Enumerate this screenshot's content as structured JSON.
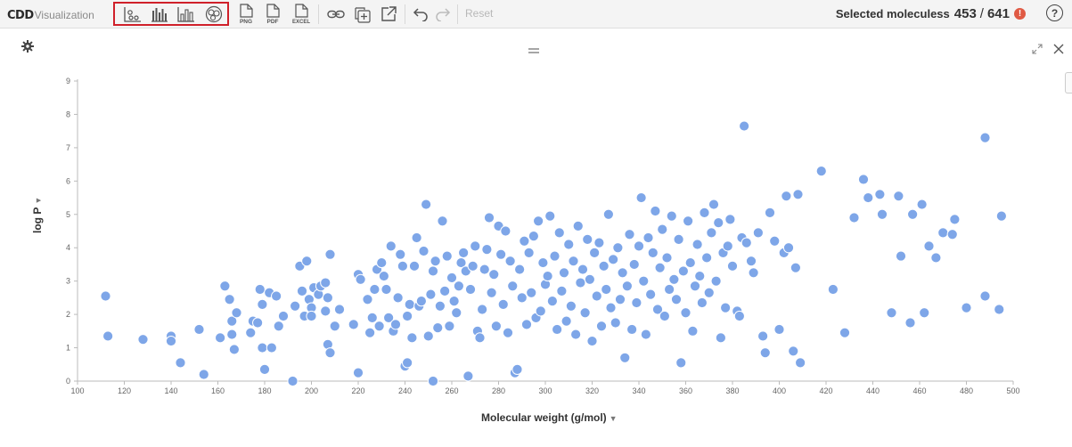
{
  "app": {
    "logo_brand": "CDD",
    "logo_product": "Visualization"
  },
  "toolbar": {
    "chart_types": [
      "scatter-plot",
      "histogram",
      "bar-chart",
      "venn-diagram"
    ],
    "exports": [
      "PNG",
      "PDF",
      "EXCEL"
    ],
    "reset_label": "Reset",
    "selected_label": "Selected moleculess",
    "selected_count": "453",
    "selected_separator": "/",
    "selected_total": "641",
    "warning_glyph": "!",
    "help_glyph": "?"
  },
  "plot": {
    "y_axis_label": "log P",
    "x_axis_label": "Molecular weight (g/mol)"
  },
  "chart_data": {
    "type": "scatter",
    "xlabel": "Molecular weight (g/mol)",
    "ylabel": "log P",
    "xlim": [
      100,
      500
    ],
    "ylim": [
      0,
      9
    ],
    "x_ticks": [
      100,
      120,
      140,
      160,
      180,
      200,
      220,
      240,
      260,
      280,
      300,
      320,
      340,
      360,
      380,
      400,
      420,
      440,
      460,
      480,
      500
    ],
    "y_ticks": [
      0,
      1,
      2,
      3,
      4,
      5,
      6,
      7,
      8,
      9
    ],
    "point_color": "#7ea6e8",
    "points": [
      [
        112,
        2.55
      ],
      [
        113,
        1.35
      ],
      [
        128,
        1.25
      ],
      [
        140,
        1.35
      ],
      [
        140,
        1.2
      ],
      [
        144,
        0.55
      ],
      [
        152,
        1.55
      ],
      [
        154,
        0.2
      ],
      [
        161,
        1.3
      ],
      [
        163,
        2.85
      ],
      [
        165,
        2.45
      ],
      [
        166,
        1.8
      ],
      [
        166,
        1.4
      ],
      [
        167,
        0.95
      ],
      [
        168,
        2.05
      ],
      [
        174,
        1.45
      ],
      [
        175,
        1.8
      ],
      [
        177,
        1.75
      ],
      [
        178,
        2.75
      ],
      [
        179,
        2.3
      ],
      [
        179,
        1.0
      ],
      [
        180,
        0.35
      ],
      [
        182,
        2.65
      ],
      [
        183,
        1.0
      ],
      [
        185,
        2.55
      ],
      [
        186,
        1.65
      ],
      [
        188,
        1.95
      ],
      [
        192,
        0.0
      ],
      [
        193,
        2.25
      ],
      [
        195,
        3.45
      ],
      [
        196,
        2.7
      ],
      [
        197,
        1.95
      ],
      [
        198,
        3.6
      ],
      [
        199,
        2.45
      ],
      [
        200,
        2.2
      ],
      [
        200,
        1.95
      ],
      [
        201,
        2.8
      ],
      [
        203,
        2.6
      ],
      [
        204,
        2.85
      ],
      [
        206,
        2.95
      ],
      [
        206,
        2.1
      ],
      [
        207,
        1.1
      ],
      [
        207,
        2.5
      ],
      [
        208,
        3.8
      ],
      [
        208,
        0.85
      ],
      [
        210,
        1.65
      ],
      [
        212,
        2.15
      ],
      [
        218,
        1.7
      ],
      [
        220,
        3.2
      ],
      [
        220,
        0.25
      ],
      [
        221,
        3.05
      ],
      [
        224,
        2.45
      ],
      [
        225,
        1.45
      ],
      [
        226,
        1.9
      ],
      [
        227,
        2.75
      ],
      [
        228,
        3.35
      ],
      [
        229,
        1.65
      ],
      [
        230,
        3.55
      ],
      [
        231,
        3.15
      ],
      [
        232,
        2.75
      ],
      [
        233,
        1.9
      ],
      [
        234,
        4.05
      ],
      [
        235,
        1.5
      ],
      [
        236,
        1.7
      ],
      [
        237,
        2.5
      ],
      [
        238,
        3.8
      ],
      [
        239,
        3.45
      ],
      [
        240,
        0.45
      ],
      [
        241,
        1.95
      ],
      [
        241,
        0.55
      ],
      [
        242,
        2.3
      ],
      [
        243,
        1.3
      ],
      [
        244,
        3.45
      ],
      [
        245,
        4.3
      ],
      [
        246,
        2.25
      ],
      [
        247,
        2.4
      ],
      [
        248,
        3.9
      ],
      [
        249,
        5.3
      ],
      [
        250,
        1.35
      ],
      [
        251,
        2.6
      ],
      [
        252,
        3.3
      ],
      [
        252,
        0.0
      ],
      [
        253,
        3.6
      ],
      [
        254,
        1.6
      ],
      [
        255,
        2.25
      ],
      [
        256,
        4.8
      ],
      [
        257,
        2.7
      ],
      [
        258,
        3.75
      ],
      [
        259,
        1.65
      ],
      [
        260,
        3.1
      ],
      [
        261,
        2.4
      ],
      [
        262,
        2.05
      ],
      [
        263,
        2.85
      ],
      [
        264,
        3.55
      ],
      [
        265,
        3.85
      ],
      [
        266,
        3.3
      ],
      [
        267,
        0.15
      ],
      [
        268,
        2.75
      ],
      [
        269,
        3.45
      ],
      [
        270,
        4.05
      ],
      [
        271,
        1.5
      ],
      [
        272,
        1.3
      ],
      [
        273,
        2.15
      ],
      [
        274,
        3.35
      ],
      [
        275,
        3.95
      ],
      [
        276,
        4.9
      ],
      [
        277,
        2.65
      ],
      [
        278,
        3.2
      ],
      [
        279,
        1.65
      ],
      [
        280,
        4.65
      ],
      [
        281,
        3.8
      ],
      [
        282,
        2.3
      ],
      [
        283,
        4.5
      ],
      [
        284,
        1.45
      ],
      [
        285,
        3.6
      ],
      [
        286,
        2.85
      ],
      [
        287,
        0.25
      ],
      [
        288,
        0.35
      ],
      [
        289,
        3.35
      ],
      [
        290,
        2.5
      ],
      [
        291,
        4.2
      ],
      [
        292,
        1.7
      ],
      [
        293,
        3.85
      ],
      [
        294,
        2.65
      ],
      [
        295,
        4.35
      ],
      [
        296,
        1.9
      ],
      [
        297,
        4.8
      ],
      [
        298,
        2.1
      ],
      [
        299,
        3.55
      ],
      [
        300,
        2.9
      ],
      [
        301,
        3.15
      ],
      [
        302,
        4.95
      ],
      [
        303,
        2.4
      ],
      [
        304,
        3.75
      ],
      [
        305,
        1.55
      ],
      [
        306,
        4.45
      ],
      [
        307,
        2.7
      ],
      [
        308,
        3.25
      ],
      [
        309,
        1.8
      ],
      [
        310,
        4.1
      ],
      [
        311,
        2.25
      ],
      [
        312,
        3.6
      ],
      [
        313,
        1.4
      ],
      [
        314,
        4.65
      ],
      [
        315,
        2.95
      ],
      [
        316,
        3.35
      ],
      [
        317,
        2.05
      ],
      [
        318,
        4.25
      ],
      [
        319,
        3.05
      ],
      [
        320,
        1.2
      ],
      [
        321,
        3.85
      ],
      [
        322,
        2.55
      ],
      [
        323,
        4.15
      ],
      [
        324,
        1.65
      ],
      [
        325,
        3.45
      ],
      [
        326,
        2.75
      ],
      [
        327,
        5.0
      ],
      [
        328,
        2.2
      ],
      [
        329,
        3.65
      ],
      [
        330,
        1.75
      ],
      [
        331,
        4.0
      ],
      [
        332,
        2.45
      ],
      [
        333,
        3.25
      ],
      [
        334,
        0.7
      ],
      [
        335,
        2.85
      ],
      [
        336,
        4.4
      ],
      [
        337,
        1.55
      ],
      [
        338,
        3.5
      ],
      [
        339,
        2.35
      ],
      [
        340,
        4.05
      ],
      [
        341,
        5.5
      ],
      [
        342,
        3.0
      ],
      [
        343,
        1.4
      ],
      [
        344,
        4.3
      ],
      [
        345,
        2.6
      ],
      [
        346,
        3.85
      ],
      [
        347,
        5.1
      ],
      [
        348,
        2.15
      ],
      [
        349,
        3.4
      ],
      [
        350,
        4.55
      ],
      [
        351,
        1.95
      ],
      [
        352,
        3.7
      ],
      [
        353,
        2.75
      ],
      [
        354,
        4.95
      ],
      [
        355,
        3.05
      ],
      [
        356,
        2.45
      ],
      [
        357,
        4.25
      ],
      [
        358,
        0.55
      ],
      [
        359,
        3.3
      ],
      [
        360,
        2.05
      ],
      [
        361,
        4.8
      ],
      [
        362,
        3.55
      ],
      [
        363,
        1.5
      ],
      [
        364,
        2.85
      ],
      [
        365,
        4.1
      ],
      [
        366,
        3.15
      ],
      [
        367,
        2.35
      ],
      [
        368,
        5.05
      ],
      [
        369,
        3.7
      ],
      [
        370,
        2.65
      ],
      [
        371,
        4.45
      ],
      [
        372,
        5.3
      ],
      [
        373,
        3.0
      ],
      [
        374,
        4.75
      ],
      [
        375,
        1.3
      ],
      [
        376,
        3.85
      ],
      [
        377,
        2.2
      ],
      [
        378,
        4.05
      ],
      [
        379,
        4.85
      ],
      [
        380,
        3.45
      ],
      [
        382,
        2.1
      ],
      [
        383,
        1.95
      ],
      [
        384,
        4.3
      ],
      [
        385,
        7.65
      ],
      [
        386,
        4.15
      ],
      [
        388,
        3.6
      ],
      [
        389,
        3.25
      ],
      [
        391,
        4.45
      ],
      [
        393,
        1.35
      ],
      [
        394,
        0.85
      ],
      [
        396,
        5.05
      ],
      [
        398,
        4.2
      ],
      [
        400,
        1.55
      ],
      [
        402,
        3.85
      ],
      [
        403,
        5.55
      ],
      [
        404,
        4.0
      ],
      [
        406,
        0.9
      ],
      [
        407,
        3.4
      ],
      [
        408,
        5.6
      ],
      [
        409,
        0.55
      ],
      [
        418,
        6.3
      ],
      [
        423,
        2.75
      ],
      [
        428,
        1.45
      ],
      [
        432,
        4.9
      ],
      [
        436,
        6.05
      ],
      [
        438,
        5.5
      ],
      [
        443,
        5.6
      ],
      [
        444,
        5.0
      ],
      [
        448,
        2.05
      ],
      [
        451,
        5.55
      ],
      [
        452,
        3.75
      ],
      [
        456,
        1.75
      ],
      [
        457,
        5.0
      ],
      [
        461,
        5.3
      ],
      [
        462,
        2.05
      ],
      [
        464,
        4.05
      ],
      [
        467,
        3.7
      ],
      [
        470,
        4.45
      ],
      [
        474,
        4.4
      ],
      [
        475,
        4.85
      ],
      [
        480,
        2.2
      ],
      [
        488,
        7.3
      ],
      [
        488,
        2.55
      ],
      [
        494,
        2.15
      ],
      [
        495,
        4.95
      ]
    ]
  }
}
